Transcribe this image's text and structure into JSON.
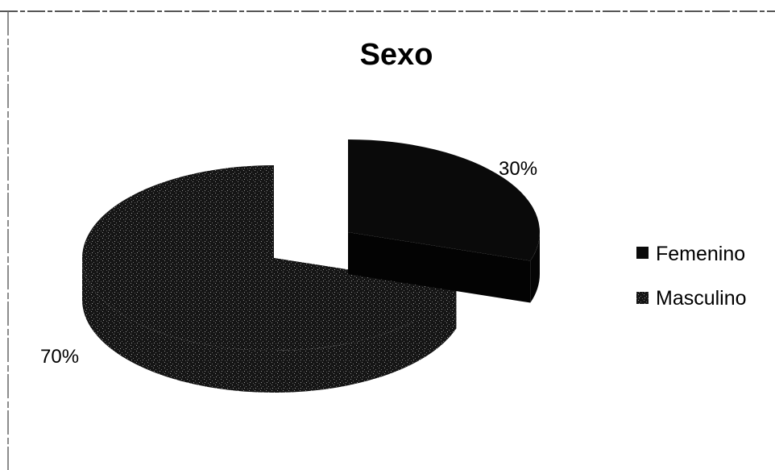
{
  "chart_data": {
    "type": "pie",
    "title": "Sexo",
    "categories": [
      "Femenino",
      "Masculino"
    ],
    "values": [
      30,
      70
    ],
    "labels": [
      "30%",
      "70%"
    ],
    "style": "3d-exploded",
    "legend_position": "right"
  },
  "colors": {
    "background": "#ffffff",
    "femenino": "#0a0a0a",
    "masculino": "#151515",
    "masculino_speckle": "#8a8a8a",
    "border": "#555555"
  }
}
